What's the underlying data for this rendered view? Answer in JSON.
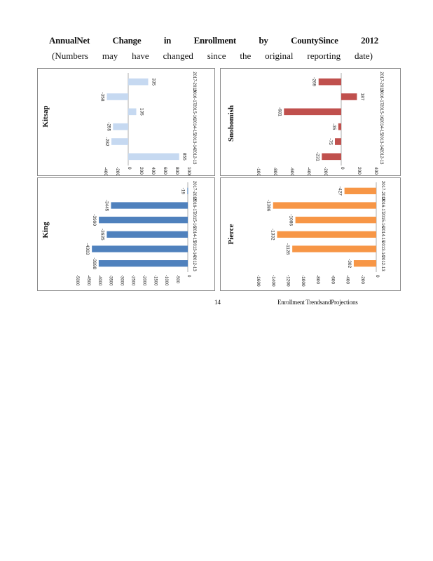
{
  "title": {
    "line1": [
      "AnnualNet",
      "Change",
      "in",
      "Enrollment",
      "by",
      "CountySince",
      "2012"
    ],
    "line2": [
      "(Numbers",
      "may",
      "have",
      "changed",
      "since",
      "the",
      "original",
      "reporting",
      "date)"
    ]
  },
  "footer": {
    "page_number": "14",
    "section": "Enrollment     TrendsandProjections"
  },
  "colors": {
    "kitsap": "#c6d9f1",
    "snohomish": "#c0504d",
    "king": "#4f81bd",
    "pierce": "#f79646"
  },
  "chart_data": [
    {
      "type": "bar",
      "orientation": "horizontal",
      "county": "Kitsap",
      "color": "#c6d9f1",
      "categories": [
        "2017-2018",
        "2016-17",
        "2015-16",
        "2014-15",
        "2013-14",
        "2012-13"
      ],
      "category_labels": [
        "2017-2018",
        "2016-17",
        "2015-16",
        "2014-15",
        "2013-14",
        "2012-13"
      ],
      "values": [
        335,
        -358,
        135,
        -255,
        -282,
        855
      ],
      "value_labels": [
        "335",
        "-358",
        "135",
        "-255",
        "-282",
        "855"
      ],
      "xlim": [
        -400,
        1000
      ],
      "tick_labels": [
        "-400",
        "-200",
        "0",
        "200",
        "400",
        "600",
        "800",
        "1000"
      ]
    },
    {
      "type": "bar",
      "orientation": "horizontal",
      "county": "Snohomish",
      "color": "#c0504d",
      "categories": [
        "2017-2018",
        "2016-17",
        "2015-16",
        "2014-15",
        "2013-14",
        "2012-13"
      ],
      "category_labels": [
        "2017-2018",
        "2016-17",
        "2015-16",
        "2014-15",
        "2013-14",
        "2012-13"
      ],
      "values": [
        -269,
        187,
        -681,
        -35,
        -75,
        -231
      ],
      "value_labels": [
        "-269",
        "187",
        "-681",
        "-35",
        "-75",
        "-231"
      ],
      "xlim": [
        -1000,
        400
      ],
      "tick_labels": [
        "-1000",
        "-800",
        "-600",
        "-400",
        "-200",
        "0",
        "200",
        "400"
      ]
    },
    {
      "type": "bar",
      "orientation": "horizontal",
      "county": "King",
      "color": "#4f81bd",
      "categories": [
        "2017-2018",
        "2016-17",
        "2015-16",
        "2014-15",
        "2013-14",
        "2012-13"
      ],
      "category_labels": [
        "2017-2018",
        "2016-17",
        "2015-16",
        "2014-15",
        "2013-14",
        "2012-13"
      ],
      "values": [
        -19,
        -3445,
        -3990,
        -3635,
        -4303,
        -3998
      ],
      "value_labels": [
        "-19",
        "-3445",
        "-3990",
        "-3635",
        "-4303",
        "-3998"
      ],
      "xlim": [
        -5000,
        0
      ],
      "tick_labels": [
        "-5000",
        "-4500",
        "-4000",
        "-3500",
        "-3000",
        "-2500",
        "-2000",
        "-1500",
        "-1000",
        "-500",
        "0"
      ]
    },
    {
      "type": "bar",
      "orientation": "horizontal",
      "county": "Pierce",
      "color": "#f79646",
      "categories": [
        "2017-2018",
        "2016-17",
        "2015-16",
        "2014-15",
        "2013-14",
        "2012-13"
      ],
      "category_labels": [
        "2017-2018",
        "2016-17",
        "2015-16",
        "2014-15",
        "2013-14",
        "2012-13"
      ],
      "values": [
        -427,
        -1386,
        -1086,
        -1332,
        -1128,
        -302
      ],
      "value_labels": [
        "-427",
        "-1386",
        "-1086",
        "-1332",
        "-1128",
        "-302"
      ],
      "xlim": [
        -1600,
        0
      ],
      "tick_labels": [
        "-1600",
        "-1400",
        "-1200",
        "-1000",
        "-800",
        "-600",
        "-400",
        "-200",
        "0"
      ]
    }
  ]
}
